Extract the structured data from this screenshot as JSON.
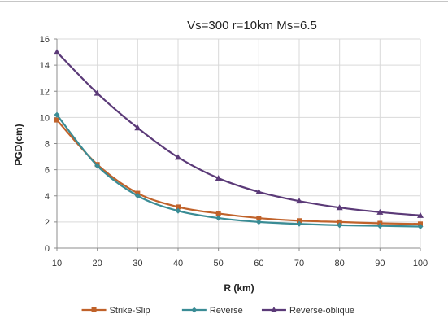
{
  "chart_data": {
    "type": "line",
    "title": "Vs=300 r=10km Ms=6.5",
    "xlabel": "R (km)",
    "ylabel": "PGD(cm)",
    "x": [
      10,
      20,
      30,
      40,
      50,
      60,
      70,
      80,
      90,
      100
    ],
    "xlim": [
      10,
      100
    ],
    "ylim": [
      0,
      16
    ],
    "x_ticks": [
      10,
      20,
      30,
      40,
      50,
      60,
      70,
      80,
      90,
      100
    ],
    "y_ticks": [
      0,
      2,
      4,
      6,
      8,
      10,
      12,
      14,
      16
    ],
    "grid": true,
    "legend": "bottom",
    "series": [
      {
        "name": "Strike-Slip",
        "color": "#c0622a",
        "marker": "square",
        "values": [
          9.8,
          6.4,
          4.2,
          3.15,
          2.65,
          2.3,
          2.1,
          2.0,
          1.9,
          1.85
        ]
      },
      {
        "name": "Reverse",
        "color": "#3a8c95",
        "marker": "diamond",
        "values": [
          10.2,
          6.3,
          4.0,
          2.85,
          2.3,
          2.0,
          1.85,
          1.75,
          1.7,
          1.65
        ]
      },
      {
        "name": "Reverse-oblique",
        "color": "#5b3a78",
        "marker": "triangle",
        "values": [
          15.0,
          11.85,
          9.2,
          6.95,
          5.35,
          4.3,
          3.6,
          3.1,
          2.75,
          2.5
        ]
      }
    ]
  }
}
